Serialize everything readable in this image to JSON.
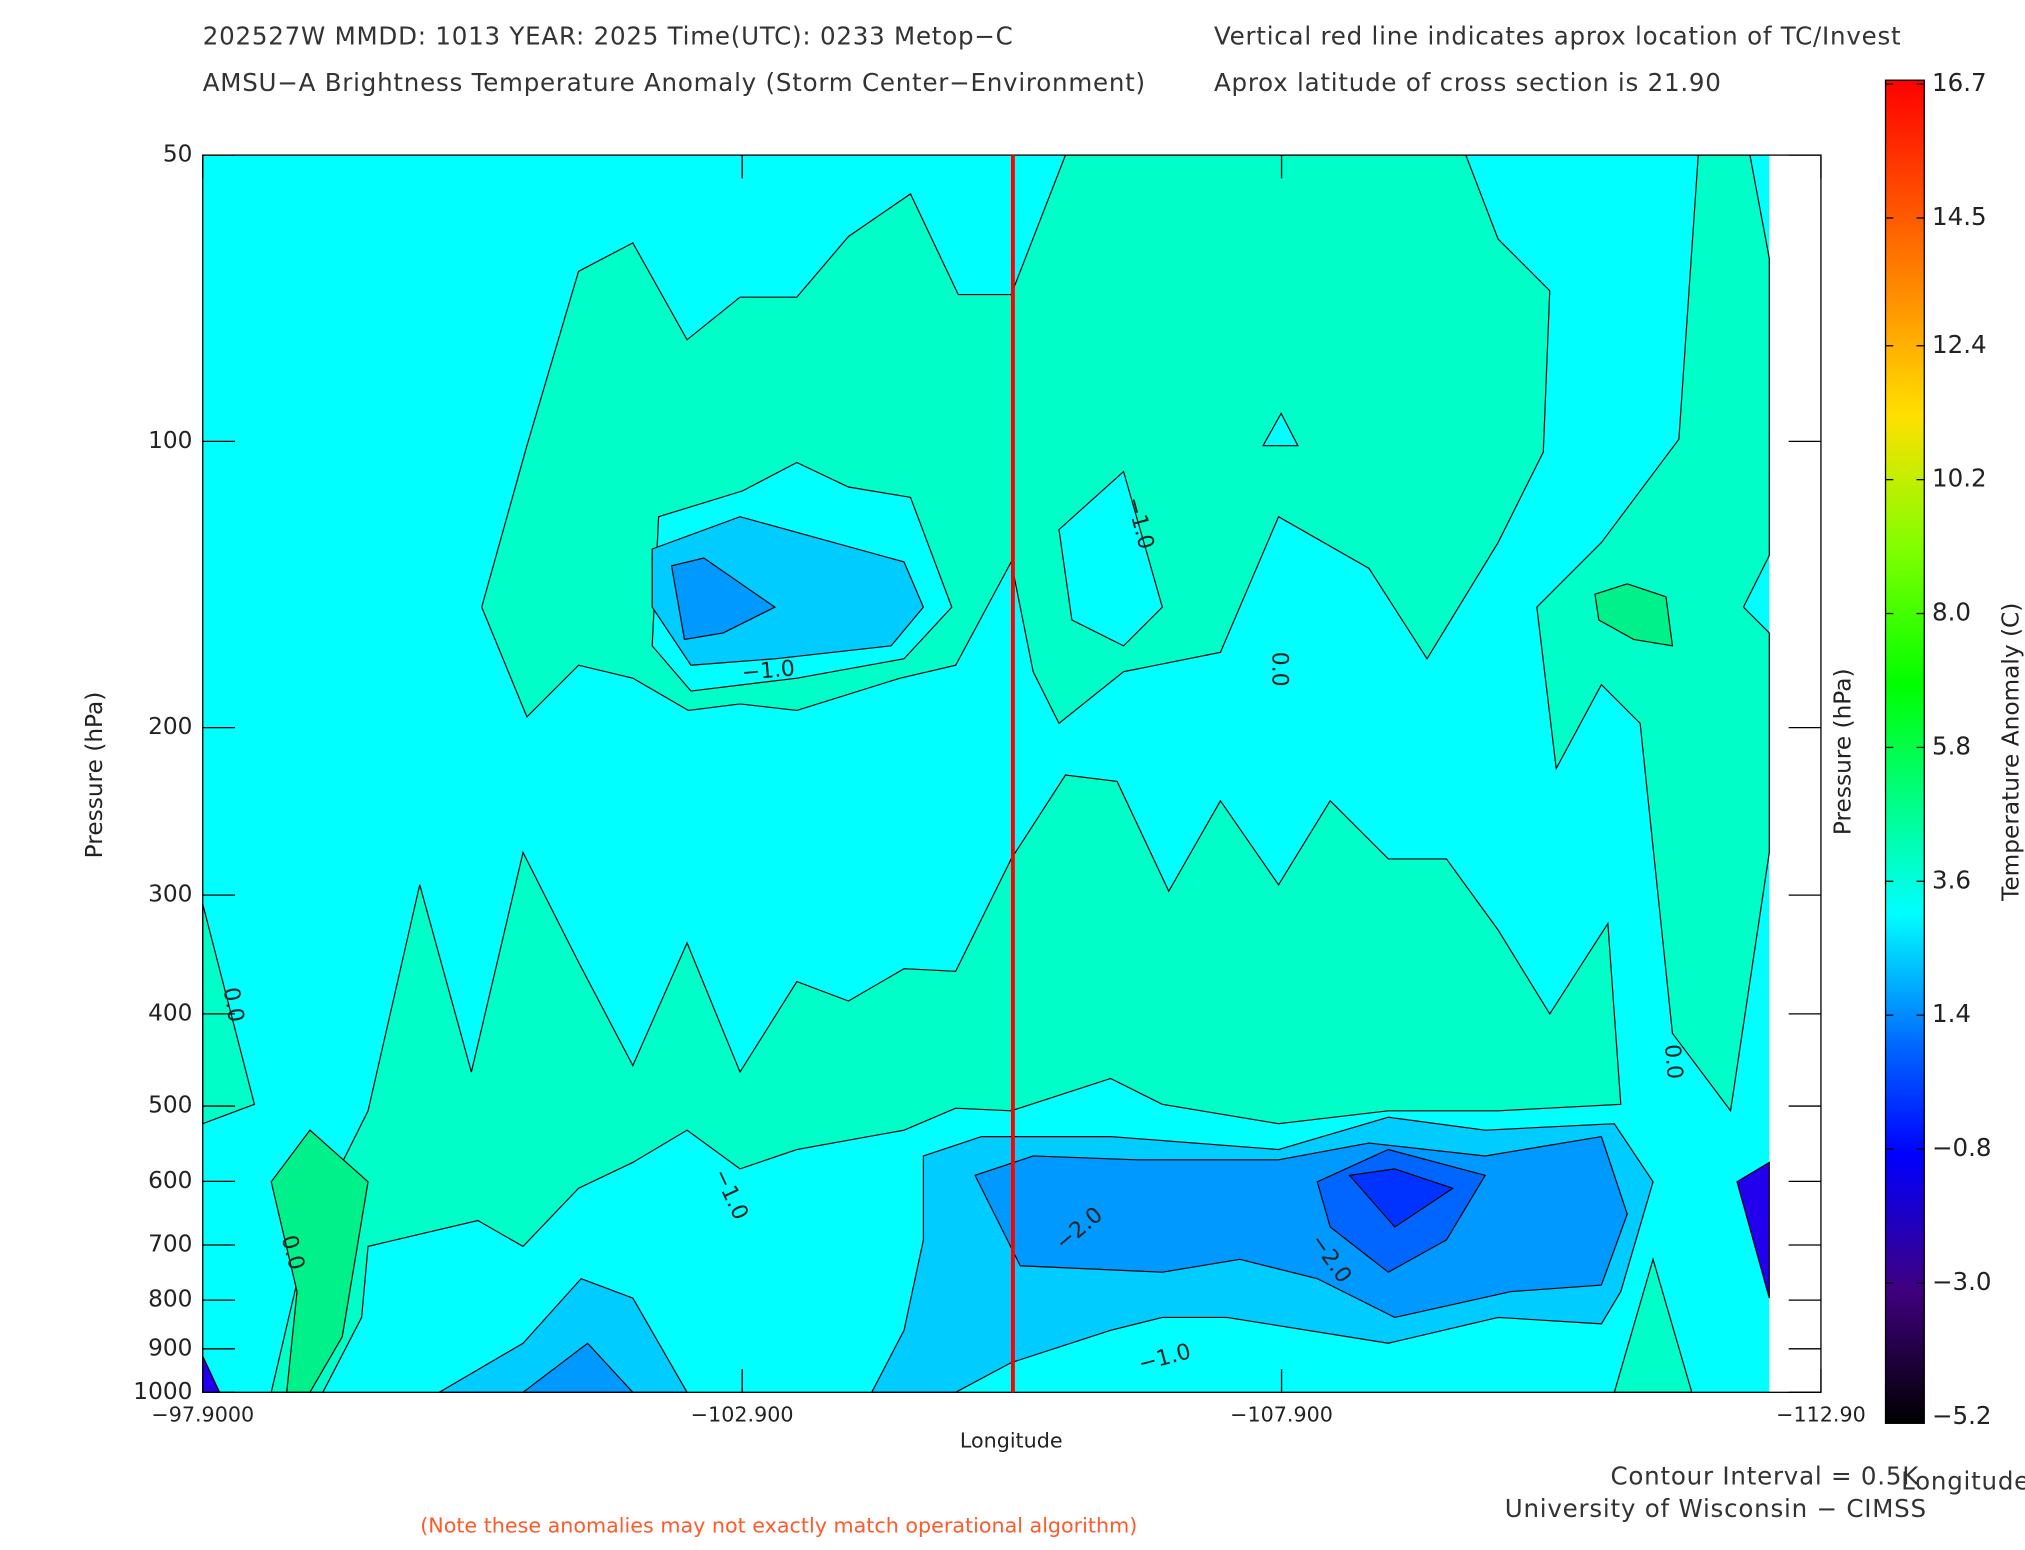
{
  "chart_data": {
    "type": "contour",
    "title": "202527W  MMDD: 1013 YEAR: 2025 Time(UTC): 0233 Metop−C",
    "subtitle": "AMSU−A Brightness Temperature Anomaly (Storm Center−Environment)",
    "annotations": [
      "Vertical red line indicates aprox location of TC/Invest",
      "Aprox latitude of cross section is 21.90",
      "Contour Interval = 0.5K",
      "University of Wisconsin − CIMSS",
      "(Note these anomalies may not exactly match operational algorithm)"
    ],
    "x_label": "Longitude",
    "y_label": "Pressure (hPa)",
    "xlim": [
      -97.9,
      -112.9
    ],
    "xticks": [
      {
        "value": -97.9,
        "label": "−97.9000"
      },
      {
        "value": -102.9,
        "label": "−102.900"
      },
      {
        "value": -107.9,
        "label": "−107.900"
      },
      {
        "value": -112.9,
        "label": "−112.90"
      }
    ],
    "ylim": [
      50,
      1000
    ],
    "y_log": true,
    "y_inverted": true,
    "yticks": [
      50,
      100,
      200,
      300,
      400,
      500,
      600,
      700,
      800,
      900,
      1000
    ],
    "tc_longitude": -105.41,
    "tc_color": "#ff0000",
    "contour_labels": [
      {
        "value": -1,
        "label": "−1.0"
      },
      {
        "value": -1,
        "label": "−1.0"
      },
      {
        "value": 0,
        "label": "0.0"
      },
      {
        "value": 0,
        "label": "0.0"
      },
      {
        "value": 0,
        "label": "0.0"
      },
      {
        "value": -1,
        "label": "−1.0"
      },
      {
        "value": 0,
        "label": "0.0"
      },
      {
        "value": -2,
        "label": "−2.0"
      },
      {
        "value": -2,
        "label": "−2.0"
      },
      {
        "value": -1,
        "label": "−1.0"
      }
    ],
    "colorbar": {
      "label": "Temperature Anomaly (C)",
      "lim": [
        -5.2,
        16.7
      ],
      "ticks": [
        16.7,
        14.5,
        12.4,
        10.2,
        {
          "value": 8,
          "label": "8.0"
        },
        5.8,
        3.6,
        1.4,
        {
          "value": -0.8,
          "label": "−0.8"
        },
        {
          "value": -3,
          "label": "−3.0"
        },
        {
          "value": -5.2,
          "label": "−5.2"
        }
      ]
    }
  }
}
